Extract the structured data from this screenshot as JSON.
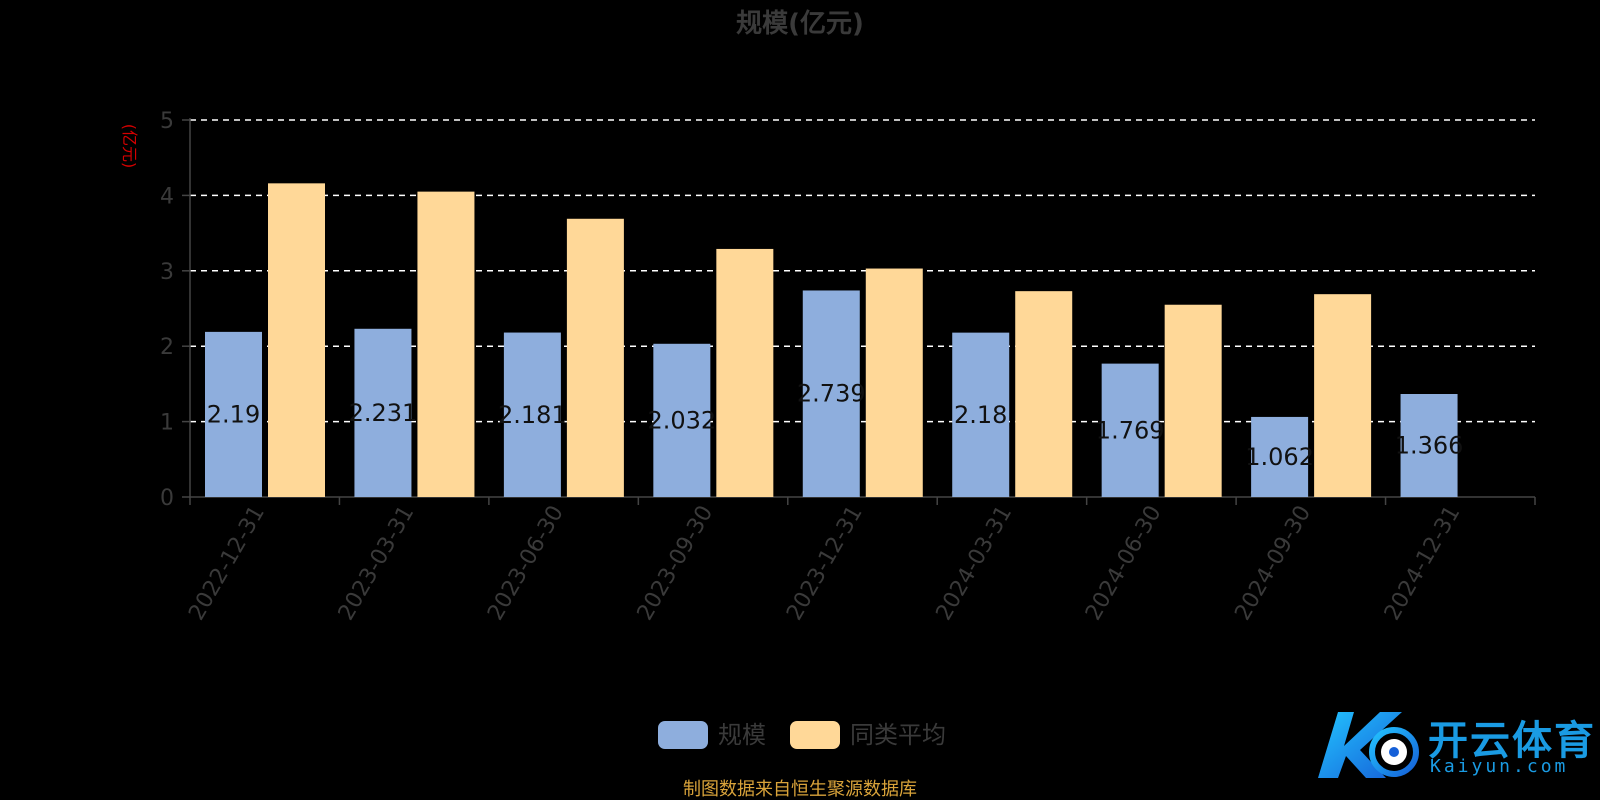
{
  "chart_data": {
    "type": "bar",
    "title": "规模(亿元)",
    "ylabel": "(亿元)",
    "ylim": [
      0,
      5
    ],
    "yticks": [
      0,
      1,
      2,
      3,
      4,
      5
    ],
    "grid": true,
    "legend_position": "bottom-center",
    "categories": [
      "2022-12-31",
      "2023-03-31",
      "2023-06-30",
      "2023-09-30",
      "2023-12-31",
      "2024-03-31",
      "2024-06-30",
      "2024-09-30",
      "2024-12-31"
    ],
    "series": [
      {
        "name": "规模",
        "color": "#8eaedd",
        "values": [
          2.19,
          2.231,
          2.181,
          2.032,
          2.739,
          2.18,
          1.769,
          1.062,
          1.366
        ],
        "labels": [
          "2.19",
          "2.231",
          "2.181",
          "2.032",
          "2.739",
          "2.18",
          "1.769",
          "1.062",
          "1.366"
        ]
      },
      {
        "name": "同类平均",
        "color": "#ffd898",
        "values": [
          4.16,
          4.05,
          3.69,
          3.29,
          3.03,
          2.73,
          2.55,
          2.69,
          null
        ]
      }
    ],
    "source_note": "制图数据来自恒生聚源数据库"
  },
  "watermark": {
    "text": "开云体育",
    "sub": "Kaiyun.com"
  }
}
